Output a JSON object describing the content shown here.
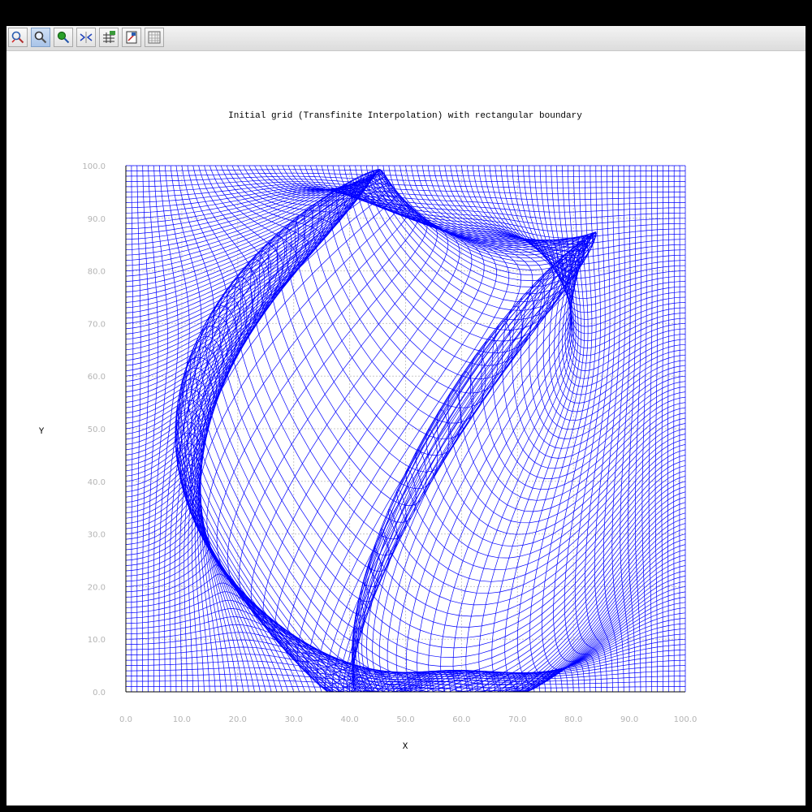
{
  "toolbar": {
    "buttons": [
      {
        "name": "zoom-in-icon",
        "active": false
      },
      {
        "name": "zoom-select-icon",
        "active": true
      },
      {
        "name": "pan-icon",
        "active": false
      },
      {
        "name": "fit-icon",
        "active": false
      },
      {
        "name": "grid-toggle-icon",
        "active": false
      },
      {
        "name": "export-icon",
        "active": false
      },
      {
        "name": "table-icon",
        "active": false
      }
    ]
  },
  "chart_data": {
    "type": "line",
    "title": "Initial grid (Transfinite Interpolation) with rectangular boundary",
    "xlabel": "X",
    "ylabel": "Y",
    "xlim": [
      0,
      100
    ],
    "ylim": [
      0,
      100
    ],
    "xticks": [
      "0.0",
      "10.0",
      "20.0",
      "30.0",
      "40.0",
      "50.0",
      "60.0",
      "70.0",
      "80.0",
      "90.0",
      "100.0"
    ],
    "yticks": [
      "0.0",
      "10.0",
      "20.0",
      "30.0",
      "40.0",
      "50.0",
      "60.0",
      "70.0",
      "80.0",
      "90.0",
      "100.0"
    ],
    "grid": true,
    "legend": "none",
    "mesh": {
      "nx": 100,
      "ny": 100,
      "domain": [
        0,
        100,
        0,
        100
      ]
    },
    "colors": {
      "mesh": "#0000ff",
      "axis": "#000000",
      "grid": "#c8c8c8",
      "ticks": "#b4b4b4"
    }
  }
}
